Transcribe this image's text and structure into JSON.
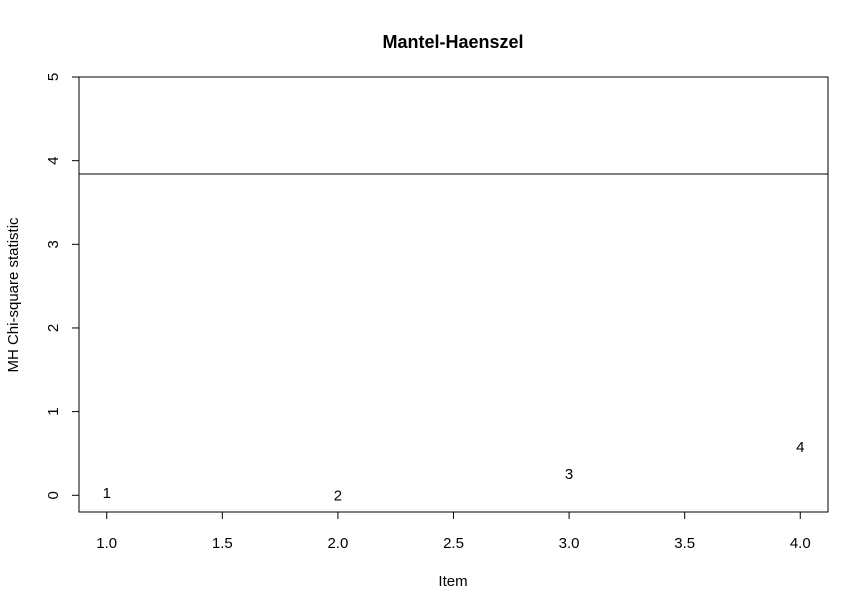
{
  "chart_data": {
    "type": "scatter",
    "title": "Mantel-Haenszel",
    "xlabel": "Item",
    "ylabel": "MH Chi-square statistic",
    "xlim": [
      0.88,
      4.12
    ],
    "ylim": [
      -0.2,
      5.0
    ],
    "xticks": [
      "1.0",
      "1.5",
      "2.0",
      "2.5",
      "3.0",
      "3.5",
      "4.0"
    ],
    "yticks": [
      "0",
      "1",
      "2",
      "3",
      "4",
      "5"
    ],
    "grid": false,
    "points": [
      {
        "label": "1",
        "x": 1.0,
        "y": 0.02
      },
      {
        "label": "2",
        "x": 2.0,
        "y": -0.01
      },
      {
        "label": "3",
        "x": 3.0,
        "y": 0.25
      },
      {
        "label": "4",
        "x": 4.0,
        "y": 0.57
      }
    ],
    "threshold_line": {
      "y": 3.84
    }
  }
}
